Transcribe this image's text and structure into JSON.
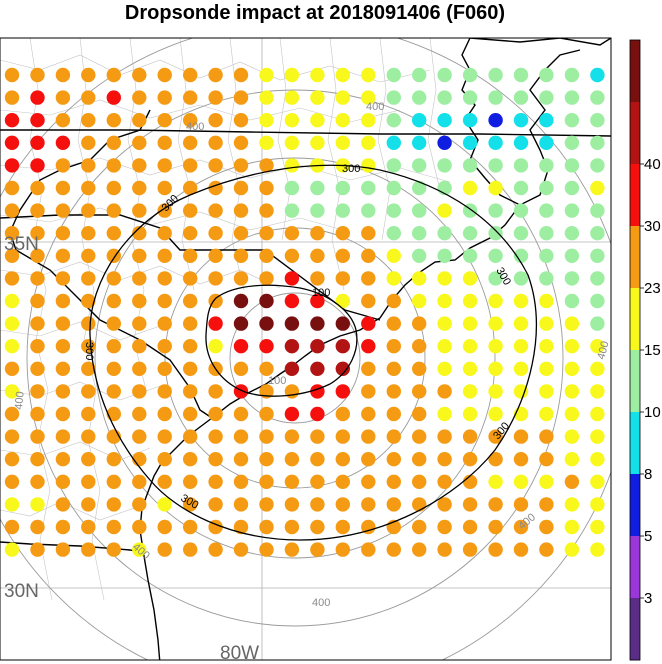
{
  "title": "Dropsonde impact at 2018091406 (F060)",
  "colors": {
    "background": "#ffffff",
    "coast": "#000000",
    "county": "#b0b0b0",
    "ring": "#9a9a9a",
    "contour": "#000000",
    "frame": "#000000"
  },
  "chart_data": {
    "type": "heatmap",
    "title": "Dropsonde impact at 2018091406 (F060)",
    "grid_labels": {
      "lat_35": "35N",
      "lat_30": "30N",
      "lon_80": "80W"
    },
    "range_ring_labels": [
      "100",
      "400"
    ],
    "contour_labels": [
      "100",
      "300"
    ],
    "colorbar": {
      "ticks": [
        "3",
        "5",
        "8",
        "10",
        "15",
        "23",
        "30",
        "40"
      ],
      "colors": [
        "#5a2e86",
        "#9b37d8",
        "#0f1ee0",
        "#13e0e8",
        "#9eeea2",
        "#f8f81c",
        "#f59b13",
        "#f5100d",
        "#b21414",
        "#781010"
      ]
    },
    "color_levels": {
      "Y": "#f8f81c",
      "O": "#f59b13",
      "G": "#9eeea2",
      "C": "#13e0e8",
      "B": "#0f1ee0",
      "R": "#f5100d",
      "M": "#b21414",
      "D": "#781010",
      "P": "#9b37d8"
    },
    "impact_grid": [
      "OOOOOOOOOOYYYYYGGGGGGGGC",
      "OROOROOOOOYYYYYGGGGGGGGG",
      "RROOOOOOOOYYYYYGCCCBCCGG",
      "RRROOOOOOOYYYYYCCBCCCCGG",
      "RROOOOOOOOOYYYYGGGGGGGGG",
      "OOOOOOOOOOOGGGGGGGYYGGGY",
      "OOOOOOOOOOOGGGGGGYGGGGGG",
      "OOOOOOOOOOOOOOOGGGGGGGGG",
      "OOOOOOOOOOOOOOOYGGGGGGGG",
      "OOOOOOOOOOOROOOYYYYGGGGG",
      "YOOOOOOOODDRRYOOYYYYYYGG",
      "YOOOOOOORDDDDDROOYYYYYYG",
      "YOOOOOOOYRRMMMROOYYYYYYY",
      "OOOOOOOOOOOMMMOOOYYYYYYY",
      "YOOOOOOOOROORROOOOYYYYYY",
      "OOOOOOOOOOORROOOOYYYYYYY",
      "OOOOOOOOOOOOOOOOOOOOOOYY",
      "OOOOOOOOOOOOOOOOOOOOOOYY",
      "OOOOOOOOOOOOOOOOOOOYYYOY",
      "YYOOOOYOOOOOOOOOOOOOOOYY",
      "OOOOOOOOOOOOOOOOOOOOOOYY",
      "YOOOOYOOOOOOOOOOOOOOOOYY"
    ]
  }
}
